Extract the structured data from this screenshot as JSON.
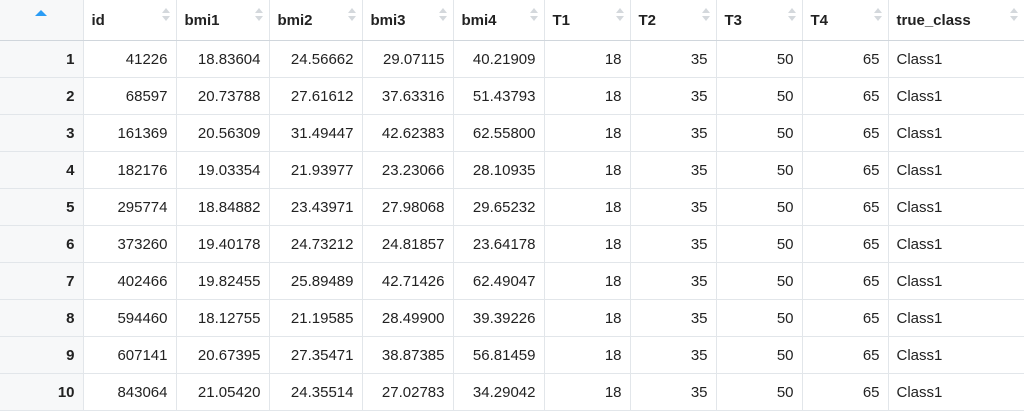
{
  "table": {
    "columns": [
      "id",
      "bmi1",
      "bmi2",
      "bmi3",
      "bmi4",
      "T1",
      "T2",
      "T3",
      "T4",
      "true_class"
    ],
    "rows": [
      {
        "n": "1",
        "cells": [
          "41226",
          "18.83604",
          "24.56662",
          "29.07115",
          "40.21909",
          "18",
          "35",
          "50",
          "65",
          "Class1"
        ]
      },
      {
        "n": "2",
        "cells": [
          "68597",
          "20.73788",
          "27.61612",
          "37.63316",
          "51.43793",
          "18",
          "35",
          "50",
          "65",
          "Class1"
        ]
      },
      {
        "n": "3",
        "cells": [
          "161369",
          "20.56309",
          "31.49447",
          "42.62383",
          "62.55800",
          "18",
          "35",
          "50",
          "65",
          "Class1"
        ]
      },
      {
        "n": "4",
        "cells": [
          "182176",
          "19.03354",
          "21.93977",
          "23.23066",
          "28.10935",
          "18",
          "35",
          "50",
          "65",
          "Class1"
        ]
      },
      {
        "n": "5",
        "cells": [
          "295774",
          "18.84882",
          "23.43971",
          "27.98068",
          "29.65232",
          "18",
          "35",
          "50",
          "65",
          "Class1"
        ]
      },
      {
        "n": "6",
        "cells": [
          "373260",
          "19.40178",
          "24.73212",
          "24.81857",
          "23.64178",
          "18",
          "35",
          "50",
          "65",
          "Class1"
        ]
      },
      {
        "n": "7",
        "cells": [
          "402466",
          "19.82455",
          "25.89489",
          "42.71426",
          "62.49047",
          "18",
          "35",
          "50",
          "65",
          "Class1"
        ]
      },
      {
        "n": "8",
        "cells": [
          "594460",
          "18.12755",
          "21.19585",
          "28.49900",
          "39.39226",
          "18",
          "35",
          "50",
          "65",
          "Class1"
        ]
      },
      {
        "n": "9",
        "cells": [
          "607141",
          "20.67395",
          "27.35471",
          "38.87385",
          "56.81459",
          "18",
          "35",
          "50",
          "65",
          "Class1"
        ]
      },
      {
        "n": "10",
        "cells": [
          "843064",
          "21.05420",
          "24.35514",
          "27.02783",
          "34.29042",
          "18",
          "35",
          "50",
          "65",
          "Class1"
        ]
      }
    ]
  },
  "colors": {
    "sort_active": "#2a9cf5",
    "sort_inactive": "#d4d8dc",
    "gridline": "#e2e6ea",
    "rownum_bg": "#f7f8f9"
  }
}
